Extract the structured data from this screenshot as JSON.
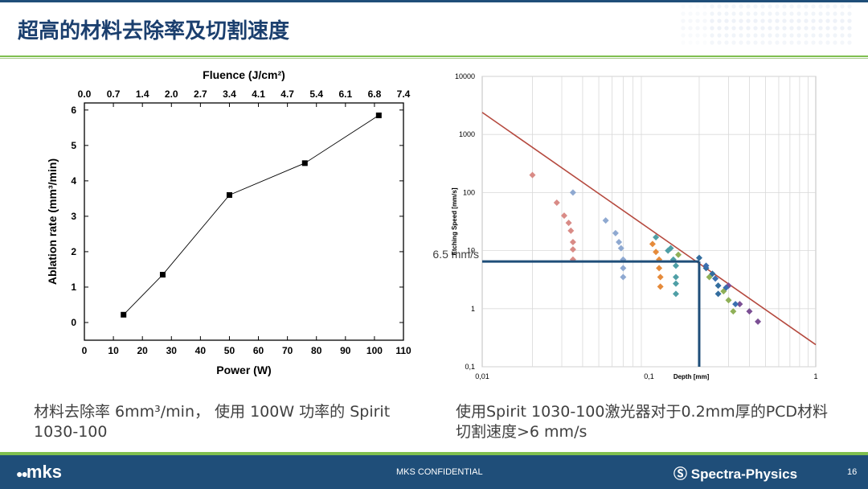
{
  "slide": {
    "title": "超高的材料去除率及切割速度",
    "caption_left": "材料去除率 6mm³/min， 使用 100W 功率的 Spirit 1030-100",
    "caption_right": "使用Spirit 1030-100激光器对于0.2mm厚的PCD材料切割速度>6 mm/s",
    "footer_confidential": "MKS CONFIDENTIAL",
    "footer_logo_left": "mks",
    "footer_logo_right": "Spectra-Physics",
    "page_number": "16",
    "colors": {
      "title": "#1b3f6e",
      "footer": "#1f4e79",
      "accent_green": "#7fbf4f"
    }
  },
  "chart_data": [
    {
      "type": "line",
      "title": "",
      "xlabel": "Power (W)",
      "ylabel": "Ablation rate (mm³/min)",
      "x2label": "Fluence (J/cm²)",
      "xlim": [
        0,
        110
      ],
      "ylim": [
        -0.5,
        6.2
      ],
      "x_ticks": [
        "0",
        "10",
        "20",
        "30",
        "40",
        "50",
        "60",
        "70",
        "80",
        "90",
        "100",
        "110"
      ],
      "x_tick_values": [
        0,
        10,
        20,
        30,
        40,
        50,
        60,
        70,
        80,
        90,
        100,
        110
      ],
      "y_ticks": [
        "0",
        "1",
        "2",
        "3",
        "4",
        "5",
        "6"
      ],
      "y_tick_values": [
        0,
        1,
        2,
        3,
        4,
        5,
        6
      ],
      "x2_ticks": [
        "0.0",
        "0.7",
        "1.4",
        "2.0",
        "2.7",
        "3.4",
        "4.1",
        "4.7",
        "5.4",
        "6.1",
        "6.8",
        "7.4"
      ],
      "grid": false,
      "series": [
        {
          "x": [
            13.5,
            27,
            50,
            76,
            101.5
          ],
          "y": [
            0.22,
            1.35,
            3.6,
            4.5,
            5.85
          ],
          "color": "#000000",
          "marker": "square"
        }
      ]
    },
    {
      "type": "scatter",
      "title": "",
      "xlabel": "Depth [mm]",
      "ylabel": "Etching Speed [mm/s]",
      "x_scale": "log",
      "y_scale": "log",
      "xlim": [
        0.01,
        1
      ],
      "ylim": [
        0.1,
        10000
      ],
      "x_ticks": [
        "0,01",
        "0,1",
        "1"
      ],
      "x_tick_values": [
        0.01,
        0.1,
        1
      ],
      "y_ticks": [
        "0,1",
        "1",
        "10",
        "100",
        "1000",
        "10000"
      ],
      "y_tick_values": [
        0.1,
        1,
        10,
        100,
        1000,
        10000
      ],
      "grid": true,
      "annotation": "6.5 mm/s",
      "annotation_point": {
        "x": 0.2,
        "y": 6.5
      },
      "trend_line": {
        "x": [
          0.01,
          1
        ],
        "y": [
          2400,
          0.24
        ],
        "color": "#b5493e"
      },
      "series": [
        {
          "color": "#d98b86",
          "x": [
            0.02,
            0.028,
            0.031,
            0.033,
            0.034,
            0.035,
            0.035,
            0.035
          ],
          "y": [
            200,
            67,
            40,
            30,
            22,
            14,
            10.5,
            7
          ]
        },
        {
          "color": "#8fa9d1",
          "x": [
            0.035,
            0.055,
            0.063,
            0.066,
            0.068,
            0.07,
            0.07,
            0.07
          ],
          "y": [
            100,
            33,
            20,
            14,
            11,
            7,
            5,
            3.5
          ]
        },
        {
          "color": "#e58a3a",
          "x": [
            0.105,
            0.11,
            0.115,
            0.115,
            0.117,
            0.117
          ],
          "y": [
            13,
            9.5,
            7,
            5,
            3.5,
            2.4
          ]
        },
        {
          "color": "#4f9fa6",
          "x": [
            0.11,
            0.13,
            0.135,
            0.14,
            0.145,
            0.145,
            0.145,
            0.145
          ],
          "y": [
            17,
            10,
            11,
            7,
            5.5,
            3.5,
            2.7,
            1.8
          ]
        },
        {
          "color": "#336d9e",
          "x": [
            0.2,
            0.22,
            0.24,
            0.26,
            0.26
          ],
          "y": [
            7.5,
            5,
            4,
            2.5,
            1.8
          ]
        },
        {
          "color": "#8fb058",
          "x": [
            0.15,
            0.23,
            0.28,
            0.3,
            0.32
          ],
          "y": [
            8.5,
            3.5,
            2,
            1.4,
            0.9
          ]
        },
        {
          "color": "#7b4f94",
          "x": [
            0.3,
            0.35,
            0.4,
            0.45
          ],
          "y": [
            2.5,
            1.2,
            0.9,
            0.6
          ]
        },
        {
          "color": "#3b6fb0",
          "x": [
            0.22,
            0.25,
            0.29,
            0.33
          ],
          "y": [
            5.5,
            3.3,
            2.3,
            1.2
          ]
        }
      ]
    }
  ]
}
